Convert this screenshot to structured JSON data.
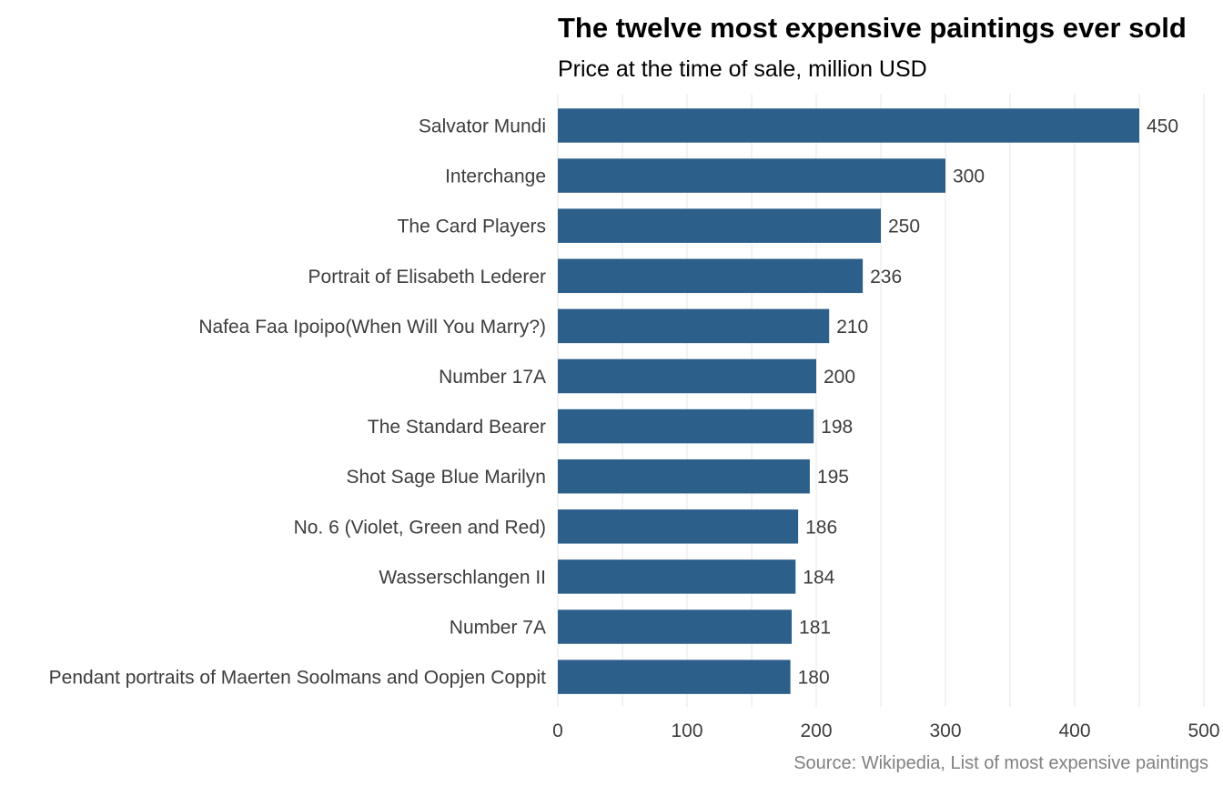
{
  "chart_data": {
    "type": "bar",
    "orientation": "horizontal",
    "title": "The twelve most expensive paintings ever sold",
    "subtitle": "Price at the time of sale, million USD",
    "caption": "Source: Wikipedia, List of most expensive paintings",
    "xlabel": "",
    "ylabel": "",
    "xlim": [
      0,
      500
    ],
    "x_ticks": [
      0,
      100,
      200,
      300,
      400,
      500
    ],
    "grid": "vertical major and minor",
    "legend": "none",
    "bar_color": "#2c5f8a",
    "categories": [
      "Salvator Mundi",
      "Interchange",
      "The Card Players",
      "Portrait of Elisabeth Lederer",
      "Nafea Faa Ipoipo(When Will You Marry?)",
      "Number 17A",
      "The Standard Bearer",
      "Shot Sage Blue Marilyn",
      "No. 6 (Violet, Green and Red)",
      "Wasserschlangen II",
      "Number 7A",
      "Pendant portraits of Maerten Soolmans and Oopjen Coppit"
    ],
    "values": [
      450,
      300,
      250,
      236,
      210,
      200,
      198,
      195,
      186,
      184,
      181,
      180
    ]
  }
}
